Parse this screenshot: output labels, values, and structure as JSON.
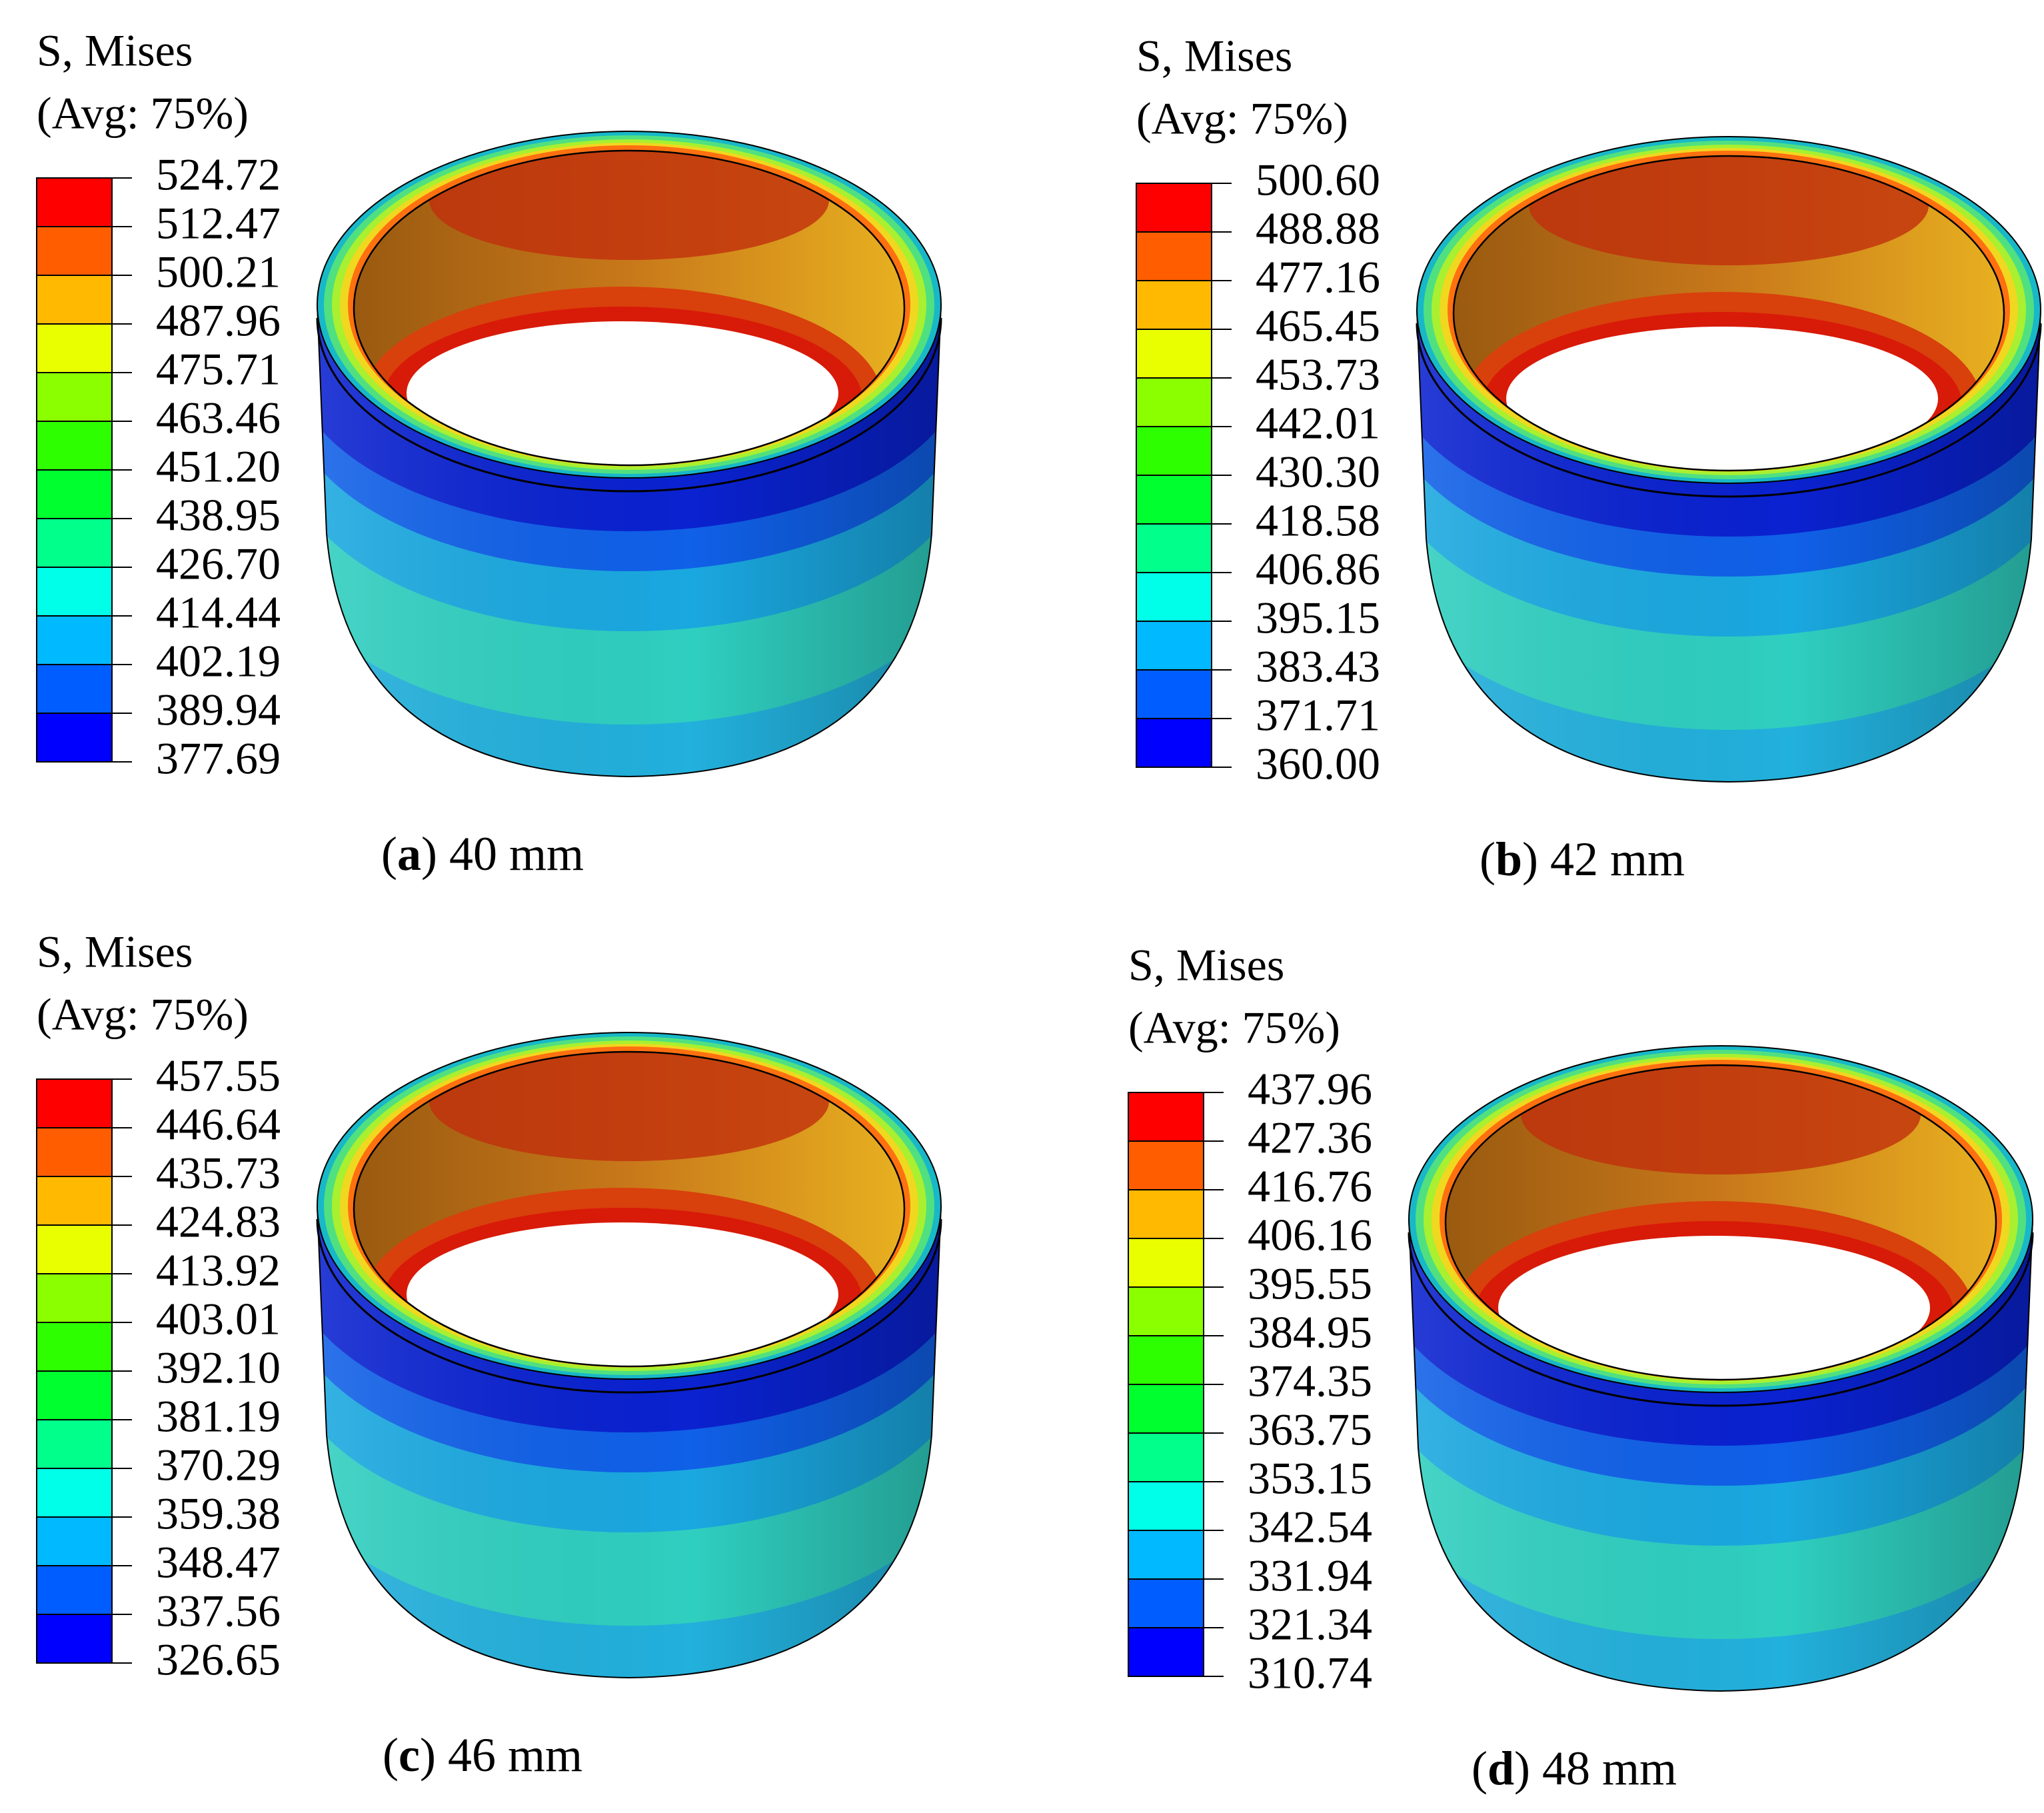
{
  "legend_colors": [
    "#ff0000",
    "#ff5d00",
    "#ffb900",
    "#e9ff00",
    "#8bff00",
    "#2eff00",
    "#00ff2e",
    "#00ff8b",
    "#00ffe8",
    "#00b9ff",
    "#005dff",
    "#0000ff"
  ],
  "panels": [
    {
      "legend": {
        "title": "S, Mises",
        "subtitle": "(Avg: 75%)",
        "labels": [
          "524.72",
          "512.47",
          "500.21",
          "487.96",
          "475.71",
          "463.46",
          "451.20",
          "438.95",
          "426.70",
          "414.44",
          "402.19",
          "389.94",
          "377.69"
        ]
      },
      "caption": [
        "(",
        "a",
        ") 40 mm"
      ]
    },
    {
      "legend": {
        "title": "S, Mises",
        "subtitle": "(Avg: 75%)",
        "labels": [
          "500.60",
          "488.88",
          "477.16",
          "465.45",
          "453.73",
          "442.01",
          "430.30",
          "418.58",
          "406.86",
          "395.15",
          "383.43",
          "371.71",
          "360.00"
        ]
      },
      "caption": [
        "(",
        "b",
        ") 42 mm"
      ]
    },
    {
      "legend": {
        "title": "S, Mises",
        "subtitle": "(Avg: 75%)",
        "labels": [
          "457.55",
          "446.64",
          "435.73",
          "424.83",
          "413.92",
          "403.01",
          "392.10",
          "381.19",
          "370.29",
          "359.38",
          "348.47",
          "337.56",
          "326.65"
        ]
      },
      "caption": [
        "(",
        "c",
        ") 46 mm"
      ]
    },
    {
      "legend": {
        "title": "S, Mises",
        "subtitle": "(Avg: 75%)",
        "labels": [
          "437.96",
          "427.36",
          "416.76",
          "406.16",
          "395.55",
          "384.95",
          "374.35",
          "363.75",
          "353.15",
          "342.54",
          "331.94",
          "321.34",
          "310.74"
        ]
      },
      "caption": [
        "(",
        "d",
        ") 48 mm"
      ]
    }
  ]
}
